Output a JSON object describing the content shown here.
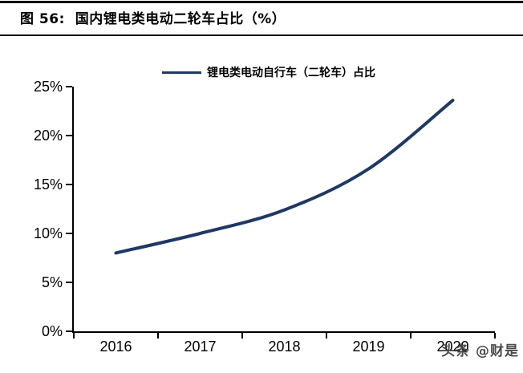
{
  "header": {
    "title": "图 56:  国内锂电类电动二轮车占比（%）"
  },
  "chart_data": {
    "type": "line",
    "title": "图 56: 国内锂电类电动二轮车占比（%）",
    "categories": [
      "2016",
      "2017",
      "2018",
      "2019",
      "2020"
    ],
    "series": [
      {
        "name": "锂电类电动自行车（二轮车）占比",
        "values": [
          8.0,
          10.0,
          12.4,
          16.6,
          23.6
        ]
      }
    ],
    "xlabel": "",
    "ylabel": "",
    "ylim": [
      0,
      25
    ],
    "ytick_step": 5,
    "ytick_labels": [
      "0%",
      "5%",
      "10%",
      "15%",
      "20%",
      "25%"
    ],
    "grid": false,
    "legend_position": "top-center",
    "line_color": "#1f3864",
    "axis_color": "#000000",
    "smooth": true
  },
  "watermark": {
    "text": "头条 @财是",
    "color": "#4b4b4b"
  }
}
